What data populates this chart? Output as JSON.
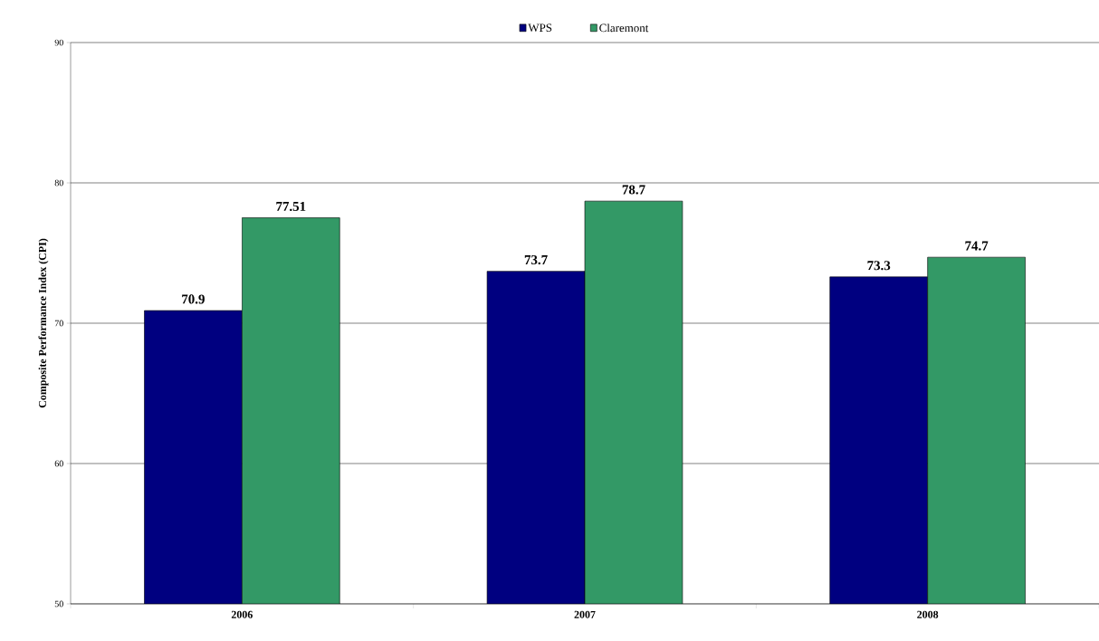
{
  "chart_data": {
    "type": "bar",
    "ylabel": "Composite Performance Index (CPI)",
    "categories": [
      "2006",
      "2007",
      "2008"
    ],
    "series": [
      {
        "name": "WPS",
        "color": "#000080",
        "values": [
          70.9,
          73.7,
          73.3
        ]
      },
      {
        "name": "Claremont",
        "color": "#339966",
        "values": [
          77.51,
          78.7,
          74.7
        ]
      }
    ],
    "ylim": [
      50,
      90
    ],
    "yticks": [
      50,
      60,
      70,
      80,
      90
    ],
    "grid": "y",
    "legend": "top",
    "data_labels": true
  }
}
